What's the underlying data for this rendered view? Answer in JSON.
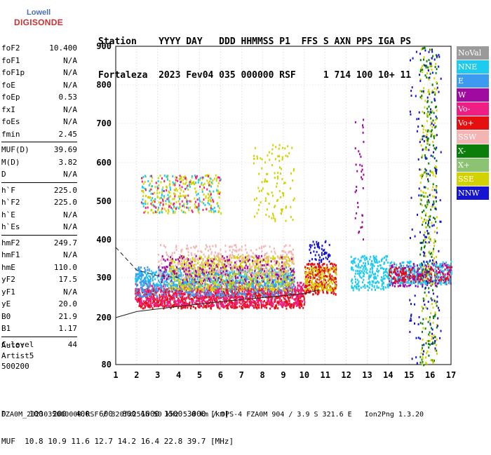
{
  "logo": {
    "line1": "Lowell",
    "line2": "DIGISONDE"
  },
  "header": {
    "line1": "Station    YYYY DAY   DDD HHMMSS P1  FFS S AXN PPS IGA PS",
    "line2": "Fortaleza  2023 Fev04 035 000000 RSF     1 714 100 10+ 11"
  },
  "params": {
    "group1": [
      {
        "name": "foF2",
        "value": "10.400"
      },
      {
        "name": "foF1",
        "value": "N/A"
      },
      {
        "name": "foF1p",
        "value": "N/A"
      },
      {
        "name": "foE",
        "value": "N/A"
      },
      {
        "name": "foEp",
        "value": "0.53"
      },
      {
        "name": "fxI",
        "value": "N/A"
      },
      {
        "name": "foEs",
        "value": "N/A"
      },
      {
        "name": "fmin",
        "value": "2.45"
      }
    ],
    "group2": [
      {
        "name": "MUF(D)",
        "value": "39.69"
      },
      {
        "name": "M(D)",
        "value": "3.82"
      },
      {
        "name": "D",
        "value": "N/A"
      }
    ],
    "group3": [
      {
        "name": "h`F",
        "value": "225.0"
      },
      {
        "name": "h`F2",
        "value": "225.0"
      },
      {
        "name": "h`E",
        "value": "N/A"
      },
      {
        "name": "h`Es",
        "value": "N/A"
      }
    ],
    "group4": [
      {
        "name": "hmF2",
        "value": "249.7"
      },
      {
        "name": "hmF1",
        "value": "N/A"
      },
      {
        "name": "hmE",
        "value": "110.0"
      },
      {
        "name": "yF2",
        "value": "17.5"
      },
      {
        "name": "yF1",
        "value": "N/A"
      },
      {
        "name": "yE",
        "value": "20.0"
      },
      {
        "name": "B0",
        "value": "21.9"
      },
      {
        "name": "B1",
        "value": "1.17"
      }
    ],
    "group5": [
      {
        "name": "C-level",
        "value": "44"
      }
    ]
  },
  "auto": {
    "line1": "Auto:",
    "line2": "Artist5",
    "line3": "500200"
  },
  "legend": [
    {
      "label": "NoVal",
      "color": "#9a9a9a"
    },
    {
      "label": "NNE",
      "color": "#1ecbf0"
    },
    {
      "label": "E",
      "color": "#3c9bf0"
    },
    {
      "label": "W",
      "color": "#a00aa0"
    },
    {
      "label": "Vo-",
      "color": "#f01e82"
    },
    {
      "label": "Vo+",
      "color": "#e60f0f"
    },
    {
      "label": "SSW",
      "color": "#f5b4b4"
    },
    {
      "label": "X-",
      "color": "#0a7d0a"
    },
    {
      "label": "X+",
      "color": "#8cc373"
    },
    {
      "label": "SSE",
      "color": "#d2d200"
    },
    {
      "label": "NNW",
      "color": "#1414d2"
    }
  ],
  "bottom": {
    "d_row": "D     100  200  400  600  800 1000 1500 3000 [km]",
    "muf_row": "MUF  10.8 10.9 11.6 12.7 14.2 16.4 22.8 39.7 [MHz]"
  },
  "footer": "FZA0M_2023035000000.RSF / 320fx256h 50 kHz 5.0 km / DPS-4 FZA0M 904 / 3.9 S 321.6 E   Ion2Png 1.3.20",
  "chart_data": {
    "type": "scatter",
    "title": "",
    "xlabel": "",
    "ylabel": "",
    "xlim": [
      1,
      17
    ],
    "ylim": [
      80,
      900
    ],
    "x_ticks": [
      1,
      2,
      3,
      4,
      5,
      6,
      7,
      8,
      9,
      10,
      11,
      12,
      13,
      14,
      15,
      16,
      17
    ],
    "y_ticks": [
      80,
      200,
      300,
      400,
      500,
      600,
      700,
      800,
      900
    ],
    "clusters": [
      {
        "color": "#e60f0f",
        "x": [
          1.9,
          10.0
        ],
        "y": [
          225,
          275
        ],
        "density": 0.9
      },
      {
        "color": "#f01e82",
        "x": [
          1.9,
          10.0
        ],
        "y": [
          230,
          290
        ],
        "density": 0.5
      },
      {
        "color": "#1ecbf0",
        "x": [
          1.9,
          9.5
        ],
        "y": [
          280,
          320
        ],
        "density": 0.55
      },
      {
        "color": "#3c9bf0",
        "x": [
          1.9,
          9.5
        ],
        "y": [
          255,
          330
        ],
        "density": 0.4
      },
      {
        "color": "#d2d200",
        "x": [
          3.5,
          9.5
        ],
        "y": [
          270,
          360
        ],
        "density": 0.45
      },
      {
        "color": "#f5b4b4",
        "x": [
          3.0,
          9.5
        ],
        "y": [
          300,
          390
        ],
        "density": 0.25
      },
      {
        "color": "#a00aa0",
        "x": [
          3.0,
          9.5
        ],
        "y": [
          290,
          360
        ],
        "density": 0.18
      },
      {
        "color": "#e60f0f",
        "x": [
          10.0,
          11.5
        ],
        "y": [
          260,
          340
        ],
        "density": 0.8
      },
      {
        "color": "#d2d200",
        "x": [
          10.0,
          11.5
        ],
        "y": [
          270,
          330
        ],
        "density": 0.5
      },
      {
        "color": "#1414d2",
        "x": [
          10.2,
          11.2
        ],
        "y": [
          340,
          400
        ],
        "density": 0.35
      },
      {
        "color": "#1ecbf0",
        "x": [
          12.2,
          14.0
        ],
        "y": [
          270,
          360
        ],
        "density": 0.55
      },
      {
        "color": "#a00aa0",
        "x": [
          14.0,
          17.0
        ],
        "y": [
          280,
          340
        ],
        "density": 0.6
      },
      {
        "color": "#1ecbf0",
        "x": [
          14.0,
          17.0
        ],
        "y": [
          285,
          345
        ],
        "density": 0.4
      },
      {
        "color": "#e60f0f",
        "x": [
          14.0,
          17.0
        ],
        "y": [
          290,
          330
        ],
        "density": 0.3
      },
      {
        "color": "#d2d200",
        "x": [
          2.2,
          6.0
        ],
        "y": [
          470,
          570
        ],
        "density": 0.22
      },
      {
        "color": "#1ecbf0",
        "x": [
          2.2,
          6.0
        ],
        "y": [
          470,
          570
        ],
        "density": 0.1
      },
      {
        "color": "#f01e82",
        "x": [
          2.2,
          6.0
        ],
        "y": [
          470,
          570
        ],
        "density": 0.08
      },
      {
        "color": "#d2d200",
        "x": [
          7.5,
          9.5
        ],
        "y": [
          450,
          650
        ],
        "density": 0.1
      },
      {
        "color": "#0a7d0a",
        "x": [
          15.5,
          16.3
        ],
        "y": [
          80,
          900
        ],
        "density": 0.12
      },
      {
        "color": "#d2d200",
        "x": [
          15.5,
          16.3
        ],
        "y": [
          80,
          900
        ],
        "density": 0.1
      },
      {
        "color": "#1414d2",
        "x": [
          15.0,
          16.5
        ],
        "y": [
          80,
          900
        ],
        "density": 0.05
      },
      {
        "color": "#a00aa0",
        "x": [
          12.4,
          12.8
        ],
        "y": [
          400,
          720
        ],
        "density": 0.1
      }
    ],
    "curves": [
      {
        "style": "solid",
        "x": [
          1.0,
          2.0,
          4.0,
          6.0,
          8.0,
          10.0,
          10.7
        ],
        "y": [
          200,
          215,
          228,
          240,
          250,
          260,
          270
        ]
      },
      {
        "style": "dashed",
        "x": [
          1.0,
          2.0,
          3.0,
          4.0
        ],
        "y": [
          380,
          320,
          305,
          300
        ]
      }
    ]
  }
}
